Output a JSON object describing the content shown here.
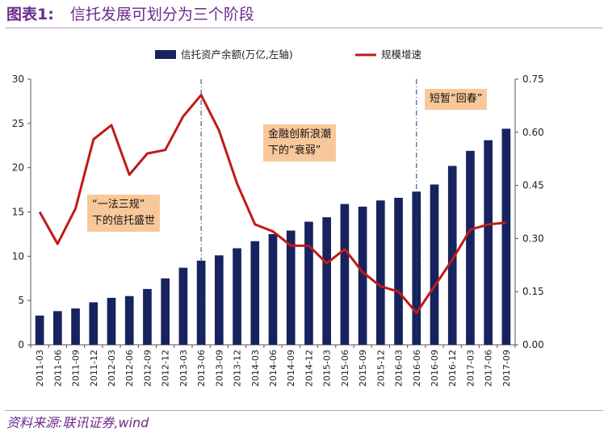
{
  "header": {
    "figure_label": "图表1:",
    "title": "信托发展可划分为三个阶段"
  },
  "source": "资料来源:联讯证券,wind",
  "colors": {
    "bar": "#16235e",
    "line": "#c01a1a",
    "title": "#6b2a8a",
    "annotation_bg": "#f9c89a"
  },
  "annotations": {
    "stage1_line1": "“一法三规”",
    "stage1_line2": "下的信托盛世",
    "stage2_line1": "金融创新浪潮",
    "stage2_line2": "下的“衰弱”",
    "stage3": "短暂“回春”"
  },
  "chart_data": {
    "type": "bar",
    "title": "信托发展可划分为三个阶段",
    "categories": [
      "2011-03",
      "2011-06",
      "2011-09",
      "2011-12",
      "2012-03",
      "2012-06",
      "2012-09",
      "2012-12",
      "2013-03",
      "2013-06",
      "2013-09",
      "2013-12",
      "2014-03",
      "2014-06",
      "2014-09",
      "2014-12",
      "2015-03",
      "2015-06",
      "2015-09",
      "2015-12",
      "2016-03",
      "2016-06",
      "2016-09",
      "2016-12",
      "2017-03",
      "2017-06",
      "2017-09"
    ],
    "series": [
      {
        "name": "信托资产余额(万亿,左轴)",
        "type": "bar",
        "axis": "left",
        "values": [
          3.3,
          3.8,
          4.1,
          4.8,
          5.3,
          5.5,
          6.3,
          7.5,
          8.7,
          9.5,
          10.1,
          10.9,
          11.7,
          12.5,
          12.9,
          13.9,
          14.4,
          15.9,
          15.6,
          16.3,
          16.6,
          17.3,
          18.1,
          20.2,
          21.9,
          23.1,
          24.4
        ]
      },
      {
        "name": "规模增速",
        "type": "line",
        "axis": "right",
        "values": [
          0.375,
          0.285,
          0.385,
          0.58,
          0.62,
          0.48,
          0.54,
          0.55,
          0.645,
          0.705,
          0.605,
          0.455,
          0.34,
          0.32,
          0.28,
          0.28,
          0.23,
          0.27,
          0.205,
          0.165,
          0.15,
          0.09,
          0.165,
          0.24,
          0.325,
          0.34,
          0.345
        ]
      }
    ],
    "y_left": {
      "min": 0,
      "max": 30,
      "ticks": [
        "0",
        "5",
        "10",
        "15",
        "20",
        "25",
        "30"
      ]
    },
    "y_right": {
      "min": 0,
      "max": 0.75,
      "ticks": [
        "0.00",
        "0.15",
        "0.30",
        "0.45",
        "0.60",
        "0.75"
      ]
    },
    "dividers_at": [
      "2013-06",
      "2016-06"
    ],
    "legend": {
      "position": "top"
    }
  }
}
